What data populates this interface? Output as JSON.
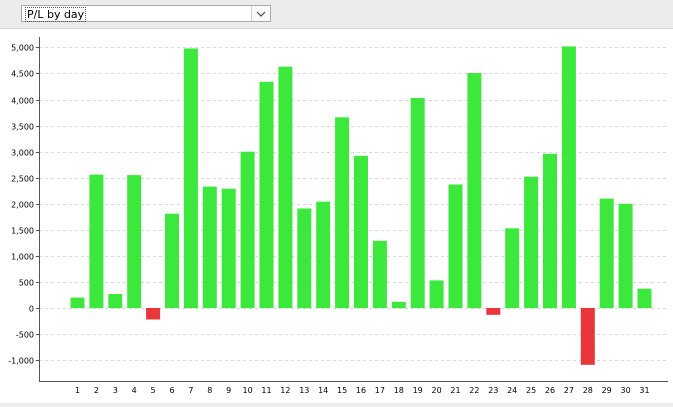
{
  "dropdown": {
    "selected": "P/L by day"
  },
  "colors": {
    "positive": "#3ce83c",
    "negative": "#e8363b",
    "grid": "#d8d8d8",
    "axis": "#555555"
  },
  "chart_data": {
    "type": "bar",
    "title": "",
    "xlabel": "",
    "ylabel": "",
    "ylim": [
      -1400,
      5200
    ],
    "grid": true,
    "yticks": [
      -1000,
      -500,
      0,
      500,
      1000,
      1500,
      2000,
      2500,
      3000,
      3500,
      4000,
      4500,
      5000
    ],
    "ytick_labels": [
      "-1,000",
      "-500",
      "0",
      "500",
      "1,000",
      "1,500",
      "2,000",
      "2,500",
      "3,000",
      "3,500",
      "4,000",
      "4,500",
      "5,000"
    ],
    "categories": [
      "1",
      "2",
      "3",
      "4",
      "5",
      "6",
      "7",
      "8",
      "9",
      "10",
      "11",
      "12",
      "13",
      "14",
      "15",
      "16",
      "17",
      "18",
      "19",
      "20",
      "21",
      "22",
      "23",
      "24",
      "25",
      "26",
      "27",
      "28",
      "29",
      "30",
      "31"
    ],
    "values": [
      200,
      2560,
      270,
      2550,
      -220,
      1810,
      4980,
      2330,
      2290,
      3000,
      4340,
      4630,
      1910,
      2040,
      3660,
      2920,
      1290,
      120,
      4030,
      530,
      2370,
      4510,
      -130,
      1530,
      2520,
      2960,
      5020,
      -1090,
      2100,
      2000,
      370
    ]
  }
}
